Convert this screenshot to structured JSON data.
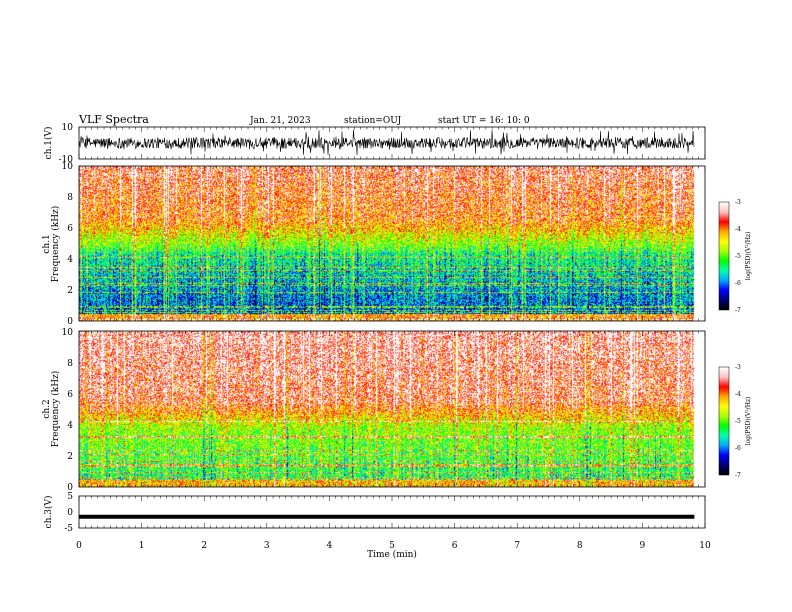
{
  "header": {
    "title": "VLF Spectra",
    "date": "Jan. 21, 2023",
    "station": "station=OUJ",
    "start": "start  UT =  16: 10: 0"
  },
  "chart_data": [
    {
      "type": "line",
      "name": "ch1-waveform",
      "ylabel": "ch.1(V)",
      "ylim": [
        -10,
        10
      ],
      "yticks": [
        "10",
        "-10"
      ],
      "xlim": [
        0,
        10
      ],
      "x_end": 9.83,
      "note_values": "dense broadband waveform, amplitude mostly within about -6..+6 V with spikes"
    },
    {
      "type": "heatmap",
      "name": "ch1-spectrogram",
      "ylabel_line1": "ch.1",
      "ylabel_line2": "Frequency (kHz)",
      "ylim": [
        0,
        10
      ],
      "yticks": [
        "0",
        "2",
        "4",
        "6",
        "8",
        "10"
      ],
      "xlim": [
        0,
        10
      ],
      "x_end": 9.83,
      "colorbar": {
        "range": [
          -7,
          -3
        ],
        "ticks": [
          "-3",
          "-4",
          "-5",
          "-6",
          "-7"
        ],
        "label": "log(PSD)(V²/Hz)"
      }
    },
    {
      "type": "heatmap",
      "name": "ch2-spectrogram",
      "ylabel_line1": "ch.2",
      "ylabel_line2": "Frequency (kHz)",
      "ylim": [
        0,
        10
      ],
      "yticks": [
        "0",
        "2",
        "4",
        "6",
        "8",
        "10"
      ],
      "xlim": [
        0,
        10
      ],
      "x_end": 9.83,
      "colorbar": {
        "range": [
          -7,
          -3
        ],
        "ticks": [
          "-3",
          "-4",
          "-5",
          "-6",
          "-7"
        ],
        "label": "log(PSD)(V²/Hz)"
      }
    },
    {
      "type": "line",
      "name": "ch3-waveform",
      "ylabel": "ch.3(V)",
      "ylim": [
        -5,
        5
      ],
      "yticks": [
        "5",
        "0",
        "-5"
      ],
      "xlim": [
        0,
        10
      ],
      "x_end": 9.83,
      "values_const": -1.5
    }
  ],
  "xaxis": {
    "label": "Time  (min)",
    "ticks": [
      "0",
      "1",
      "2",
      "3",
      "4",
      "5",
      "6",
      "7",
      "8",
      "9",
      "10"
    ]
  },
  "colors": {
    "colormap": [
      "#000000",
      "#00007a",
      "#0000ff",
      "#00aaff",
      "#00ffaa",
      "#00ff00",
      "#aaff00",
      "#ffff00",
      "#ffaa00",
      "#ff0000",
      "#ffc0c0",
      "#ffffff"
    ]
  }
}
